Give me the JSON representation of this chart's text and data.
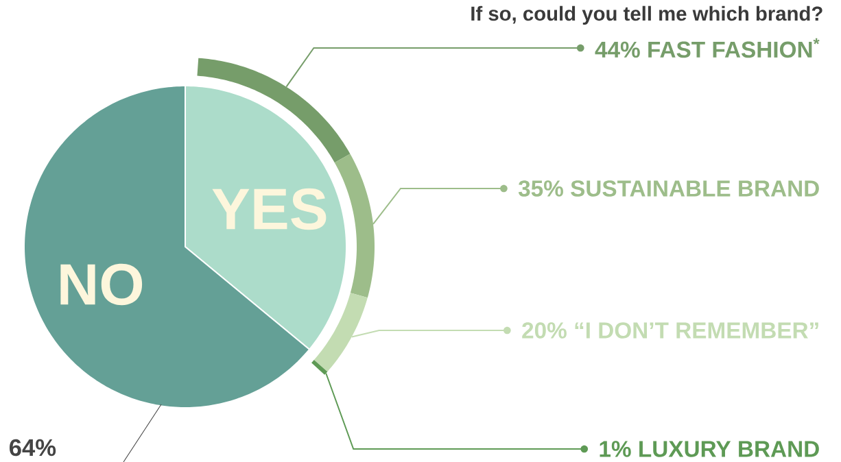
{
  "chart_data": [
    {
      "type": "pie",
      "categories": [
        "YES",
        "NO"
      ],
      "values": [
        36,
        64
      ],
      "colors": [
        "#acdcca",
        "#64a096"
      ],
      "value_labels": [
        null,
        "64%"
      ]
    },
    {
      "type": "donut",
      "title": "If so, could you tell me which brand?",
      "categories": [
        "FAST FASHION$^{*}$",
        "SUSTAINABLE BRAND",
        "“I DON’T REMEMBER”",
        "LUXURY BRAND"
      ],
      "values": [
        44,
        35,
        20,
        1
      ],
      "colors": [
        "#769d6a",
        "#9dbd8a",
        "#c3dcb2",
        "#5e9a55"
      ],
      "value_labels": [
        "44%",
        "35%",
        "20%",
        "1%"
      ]
    }
  ]
}
